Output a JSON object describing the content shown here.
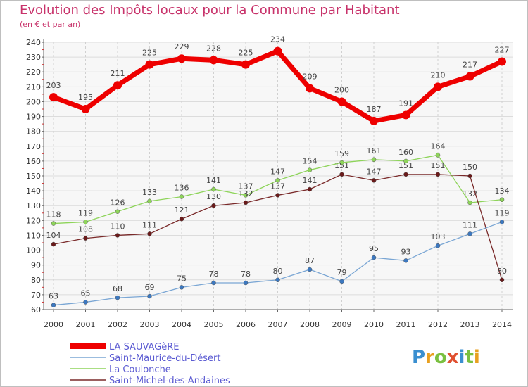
{
  "header": {
    "title": "Evolution des Impôts locaux pour la Commune par Habitant",
    "subtitle": "(en € et par an)"
  },
  "brand": {
    "text": "Prox",
    "text2": "iti"
  },
  "chart_data": {
    "type": "line",
    "x": [
      2000,
      2001,
      2002,
      2003,
      2004,
      2005,
      2006,
      2007,
      2008,
      2009,
      2010,
      2011,
      2012,
      2013,
      2014
    ],
    "ylim": [
      60,
      240
    ],
    "yticks": [
      60,
      70,
      80,
      90,
      100,
      110,
      120,
      130,
      140,
      150,
      160,
      170,
      180,
      190,
      200,
      210,
      220,
      230,
      240
    ],
    "grid": true,
    "legend_position": "bottom-left",
    "series": [
      {
        "name": "LA SAUVAGèRE",
        "color": "#ee0000",
        "marker": "#ee0000",
        "width": 7,
        "values": [
          203,
          195,
          211,
          225,
          229,
          228,
          225,
          234,
          209,
          200,
          187,
          191,
          210,
          217,
          227
        ]
      },
      {
        "name": "Saint-Maurice-du-Désert",
        "color": "#7aa6d4",
        "marker": "#3c78c0",
        "width": 1.3,
        "values": [
          63,
          65,
          68,
          69,
          75,
          78,
          78,
          80,
          87,
          79,
          95,
          93,
          103,
          111,
          119
        ]
      },
      {
        "name": "La Coulonche",
        "color": "#8ed45a",
        "marker": "#8ed45a",
        "width": 1.3,
        "values": [
          118,
          119,
          126,
          133,
          136,
          141,
          137,
          147,
          154,
          159,
          161,
          160,
          164,
          132,
          134
        ]
      },
      {
        "name": "Saint-Michel-des-Andaines",
        "color": "#7a2a2a",
        "marker": "#6a1a1a",
        "width": 1.3,
        "values": [
          104,
          108,
          110,
          111,
          121,
          130,
          132,
          137,
          141,
          151,
          147,
          151,
          151,
          150,
          80
        ]
      }
    ]
  }
}
